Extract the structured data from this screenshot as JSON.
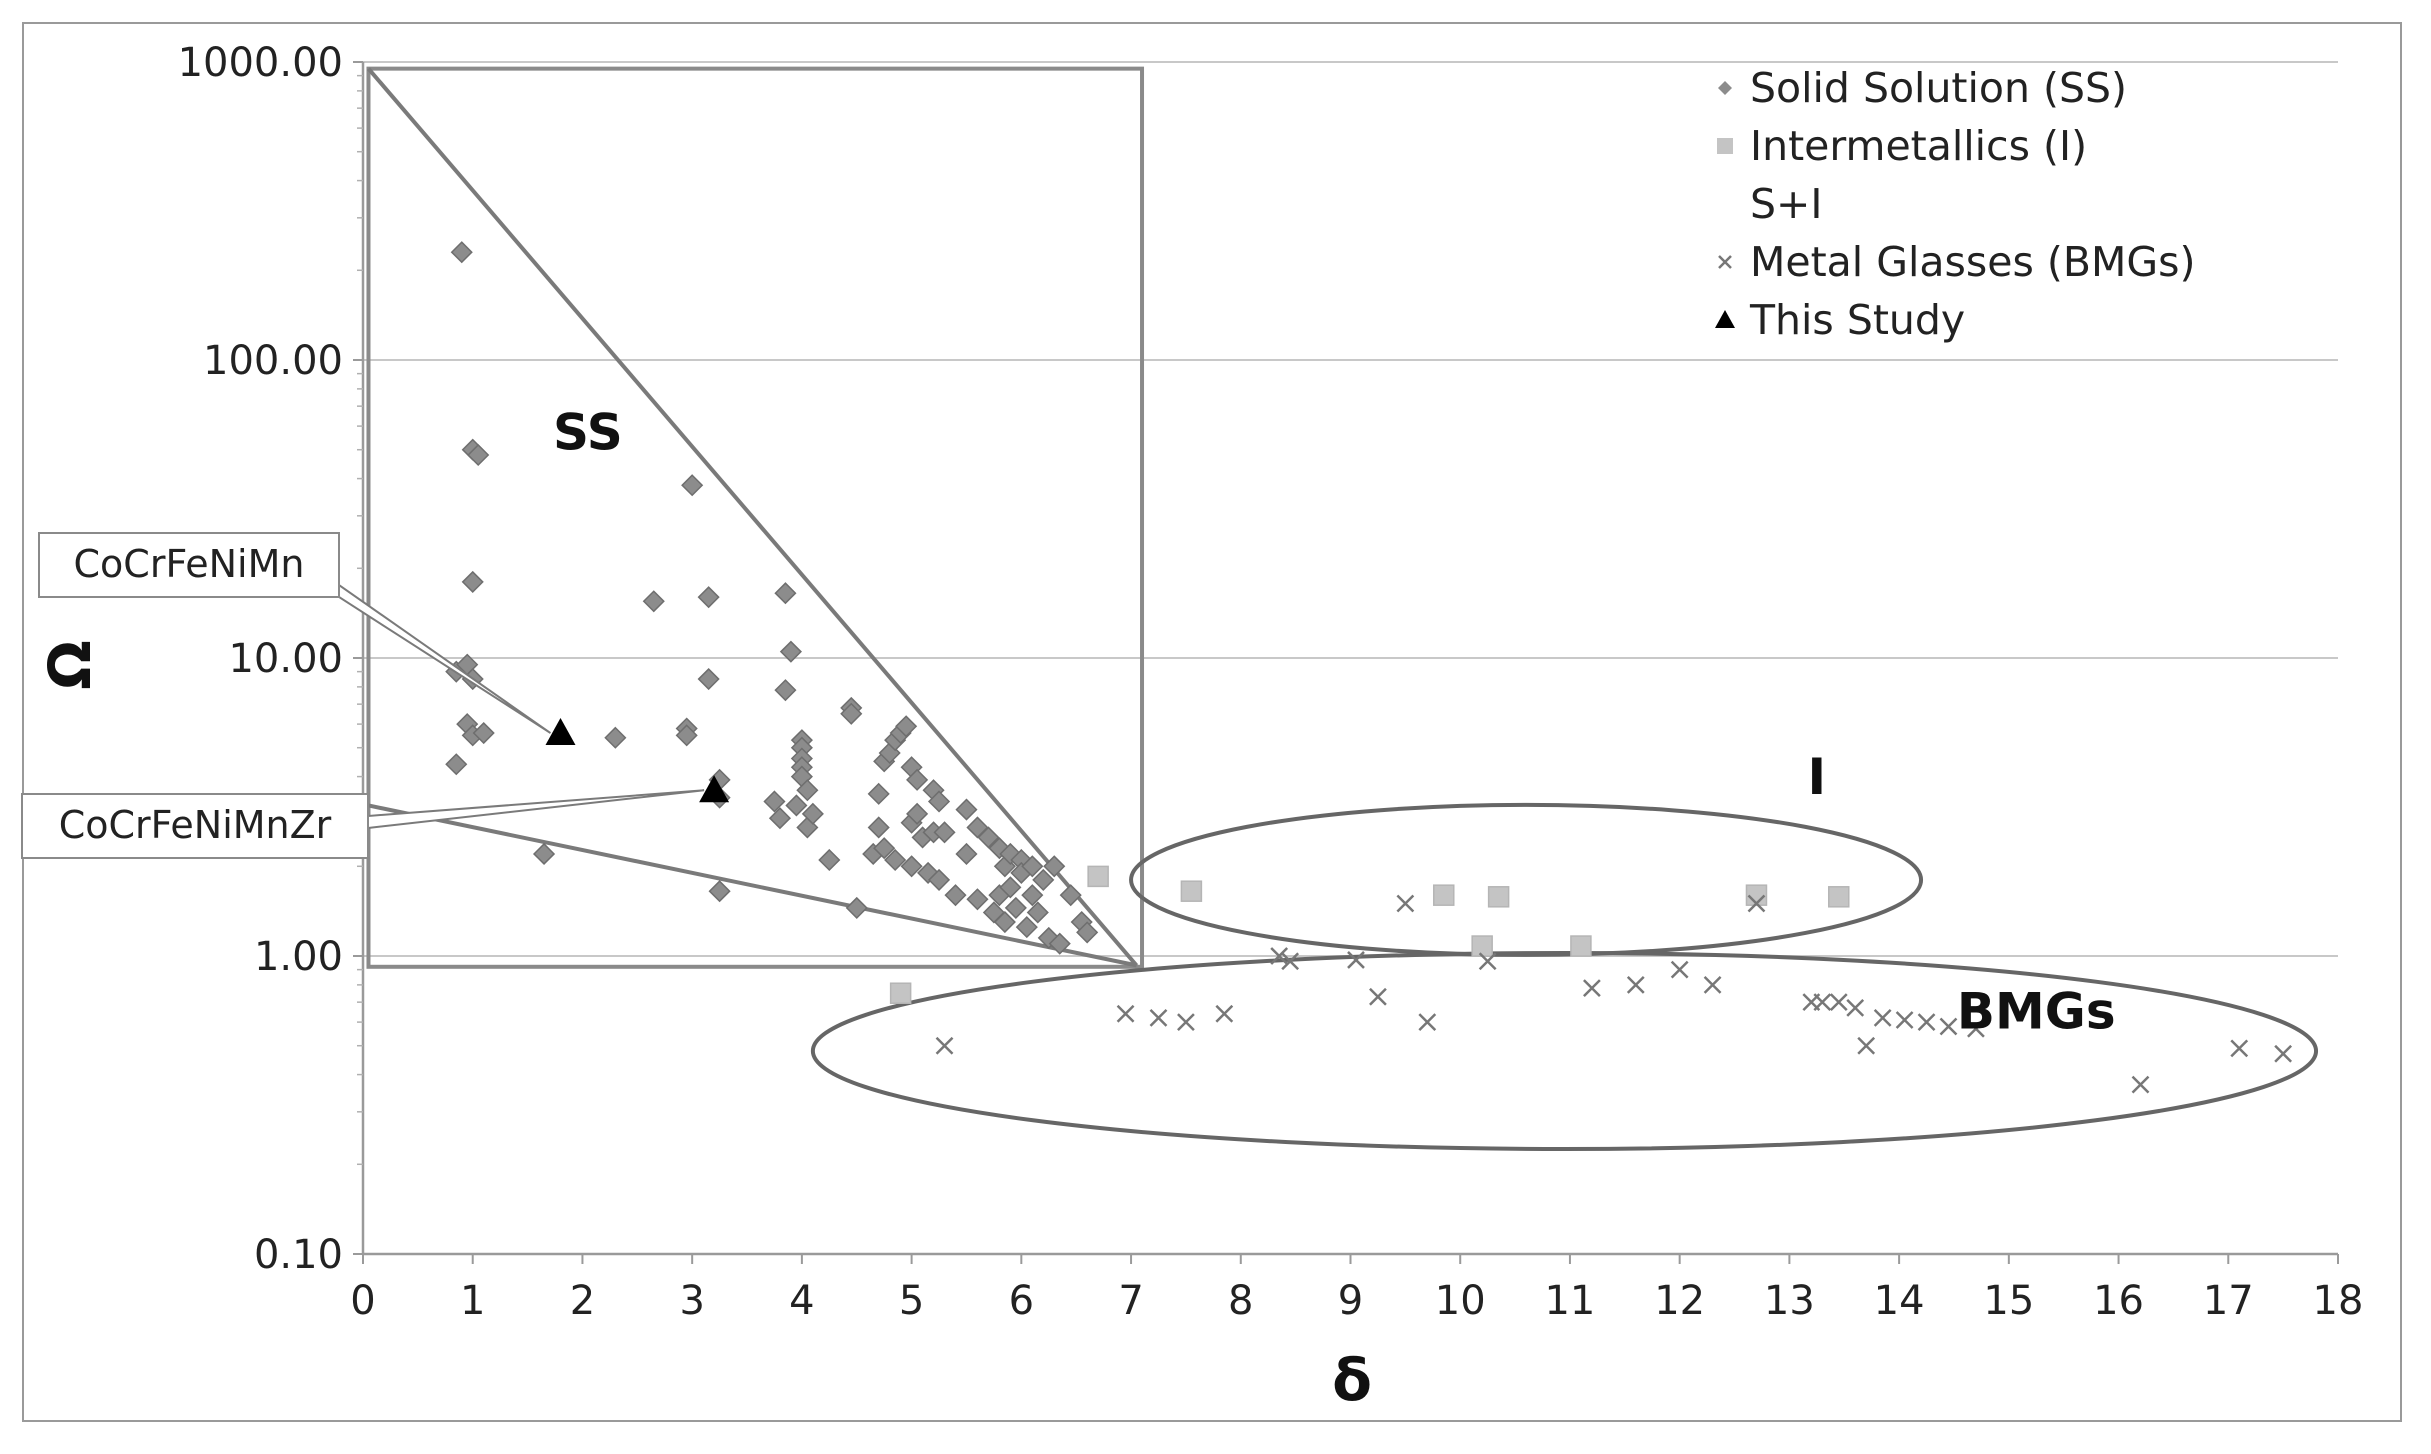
{
  "chart_data": {
    "type": "scatter",
    "xlabel": "δ",
    "ylabel": "Ω",
    "xlim": [
      0,
      18
    ],
    "ylim": [
      0.1,
      1000
    ],
    "yscale": "log",
    "x_ticks": [
      "0",
      "1",
      "2",
      "3",
      "4",
      "5",
      "6",
      "7",
      "8",
      "9",
      "10",
      "11",
      "12",
      "13",
      "14",
      "15",
      "16",
      "17",
      "18"
    ],
    "y_ticks": [
      "1000.00",
      "100.00",
      "10.00",
      "1.00",
      "0.10"
    ],
    "grid": "horizontal",
    "legend_position": "top-right",
    "legend": [
      {
        "label": "Solid Solution (SS)",
        "marker": "diamond",
        "color": "#8c8c8c"
      },
      {
        "label": "Intermetallics (I)",
        "marker": "square",
        "color": "#c4c4c4"
      },
      {
        "label": "S+I",
        "marker": "none",
        "color": "#ffffff"
      },
      {
        "label": "Metal Glasses (BMGs)",
        "marker": "x",
        "color": "#777777"
      },
      {
        "label": "This Study",
        "marker": "triangle",
        "color": "#000000"
      }
    ],
    "series": [
      {
        "name": "Solid Solution (SS)",
        "marker": "diamond",
        "points": [
          [
            0.9,
            230
          ],
          [
            1.0,
            50
          ],
          [
            1.05,
            48
          ],
          [
            1.0,
            18
          ],
          [
            0.85,
            9
          ],
          [
            0.95,
            9.5
          ],
          [
            1.0,
            8.5
          ],
          [
            0.95,
            6
          ],
          [
            1.0,
            5.5
          ],
          [
            1.1,
            5.6
          ],
          [
            0.85,
            4.4
          ],
          [
            1.65,
            2.2
          ],
          [
            2.3,
            5.4
          ],
          [
            2.65,
            15.5
          ],
          [
            2.95,
            5.8
          ],
          [
            2.95,
            5.5
          ],
          [
            3.0,
            38
          ],
          [
            3.15,
            16
          ],
          [
            3.15,
            8.5
          ],
          [
            3.25,
            3.9
          ],
          [
            3.25,
            3.4
          ],
          [
            3.25,
            1.65
          ],
          [
            3.75,
            3.3
          ],
          [
            3.8,
            2.9
          ],
          [
            3.85,
            16.5
          ],
          [
            3.85,
            7.8
          ],
          [
            3.9,
            10.5
          ],
          [
            3.95,
            3.2
          ],
          [
            4.0,
            5.3
          ],
          [
            4.0,
            5.0
          ],
          [
            4.0,
            4.6
          ],
          [
            4.0,
            4.3
          ],
          [
            4.0,
            4.0
          ],
          [
            4.05,
            3.6
          ],
          [
            4.05,
            2.7
          ],
          [
            4.1,
            3.0
          ],
          [
            4.25,
            2.1
          ],
          [
            4.45,
            6.8
          ],
          [
            4.45,
            6.5
          ],
          [
            4.5,
            1.45
          ],
          [
            4.65,
            2.2
          ],
          [
            4.7,
            3.5
          ],
          [
            4.7,
            2.7
          ],
          [
            4.75,
            4.5
          ],
          [
            4.75,
            2.3
          ],
          [
            4.8,
            4.8
          ],
          [
            4.85,
            5.3
          ],
          [
            4.85,
            2.1
          ],
          [
            4.9,
            5.6
          ],
          [
            4.95,
            5.9
          ],
          [
            5.0,
            4.3
          ],
          [
            5.0,
            2.8
          ],
          [
            5.0,
            2.0
          ],
          [
            5.05,
            3.9
          ],
          [
            5.05,
            3.0
          ],
          [
            5.1,
            2.5
          ],
          [
            5.15,
            1.9
          ],
          [
            5.2,
            3.6
          ],
          [
            5.2,
            2.6
          ],
          [
            5.25,
            3.3
          ],
          [
            5.25,
            1.8
          ],
          [
            5.3,
            2.6
          ],
          [
            5.4,
            1.6
          ],
          [
            5.5,
            3.1
          ],
          [
            5.5,
            2.2
          ],
          [
            5.6,
            2.7
          ],
          [
            5.6,
            1.55
          ],
          [
            5.7,
            2.5
          ],
          [
            5.75,
            1.4
          ],
          [
            5.8,
            2.3
          ],
          [
            5.8,
            1.6
          ],
          [
            5.85,
            2.0
          ],
          [
            5.85,
            1.3
          ],
          [
            5.9,
            2.2
          ],
          [
            5.9,
            1.7
          ],
          [
            5.95,
            1.45
          ],
          [
            6.0,
            2.1
          ],
          [
            6.0,
            1.9
          ],
          [
            6.05,
            1.25
          ],
          [
            6.1,
            2.0
          ],
          [
            6.1,
            1.6
          ],
          [
            6.15,
            1.4
          ],
          [
            6.2,
            1.8
          ],
          [
            6.25,
            1.15
          ],
          [
            6.3,
            2.0
          ],
          [
            6.35,
            1.1
          ],
          [
            6.45,
            1.6
          ],
          [
            6.55,
            1.3
          ],
          [
            6.6,
            1.2
          ]
        ]
      },
      {
        "name": "Intermetallics (I)",
        "marker": "square",
        "points": [
          [
            4.9,
            0.75
          ],
          [
            6.7,
            1.85
          ],
          [
            7.55,
            1.65
          ],
          [
            9.85,
            1.6
          ],
          [
            10.2,
            1.08
          ],
          [
            10.35,
            1.58
          ],
          [
            11.1,
            1.08
          ],
          [
            12.7,
            1.6
          ],
          [
            13.45,
            1.58
          ]
        ]
      },
      {
        "name": "Metal Glasses (BMGs)",
        "marker": "x",
        "points": [
          [
            5.3,
            0.5
          ],
          [
            6.95,
            0.64
          ],
          [
            7.25,
            0.62
          ],
          [
            7.5,
            0.6
          ],
          [
            7.85,
            0.64
          ],
          [
            8.35,
            1.0
          ],
          [
            8.45,
            0.96
          ],
          [
            9.05,
            0.97
          ],
          [
            9.25,
            0.73
          ],
          [
            9.5,
            1.5
          ],
          [
            9.7,
            0.6
          ],
          [
            10.25,
            0.96
          ],
          [
            11.2,
            0.78
          ],
          [
            11.6,
            0.8
          ],
          [
            12.0,
            0.9
          ],
          [
            12.3,
            0.8
          ],
          [
            12.7,
            1.5
          ],
          [
            13.2,
            0.7
          ],
          [
            13.3,
            0.7
          ],
          [
            13.45,
            0.7
          ],
          [
            13.6,
            0.67
          ],
          [
            13.7,
            0.5
          ],
          [
            13.85,
            0.62
          ],
          [
            14.05,
            0.61
          ],
          [
            14.25,
            0.6
          ],
          [
            14.45,
            0.58
          ],
          [
            14.7,
            0.57
          ],
          [
            16.2,
            0.37
          ],
          [
            17.1,
            0.49
          ],
          [
            17.5,
            0.47
          ]
        ]
      },
      {
        "name": "This Study",
        "marker": "triangle",
        "points": [
          [
            1.8,
            5.6
          ],
          [
            3.2,
            3.6
          ]
        ]
      }
    ],
    "annotations": [
      {
        "text": "SS",
        "x": 2.05,
        "y": 50
      },
      {
        "text": "I",
        "x": 13.25,
        "y": 3.5
      },
      {
        "text": "BMGs",
        "x": 15.25,
        "y": 0.57
      },
      {
        "text": "CoCrFeNiMn",
        "points_to": [
          1.8,
          5.6
        ]
      },
      {
        "text": "CoCrFeNiMnZr",
        "points_to": [
          3.2,
          3.6
        ]
      }
    ],
    "regions": [
      {
        "shape": "rect",
        "x0": 0.05,
        "x1": 7.1,
        "y0": 0.92,
        "y1": 950
      },
      {
        "shape": "line",
        "from": [
          0.05,
          950
        ],
        "to": [
          7.05,
          0.93
        ]
      },
      {
        "shape": "line",
        "from": [
          0.05,
          3.2
        ],
        "to": [
          7.05,
          0.93
        ]
      },
      {
        "shape": "ellipse",
        "cx": 10.6,
        "cy": 1.8,
        "rx_data": 7.2,
        "label": "I"
      },
      {
        "shape": "ellipse",
        "cx": 10.95,
        "cy": 0.48,
        "rx_data": 13.7,
        "label": "BMGs"
      }
    ]
  }
}
